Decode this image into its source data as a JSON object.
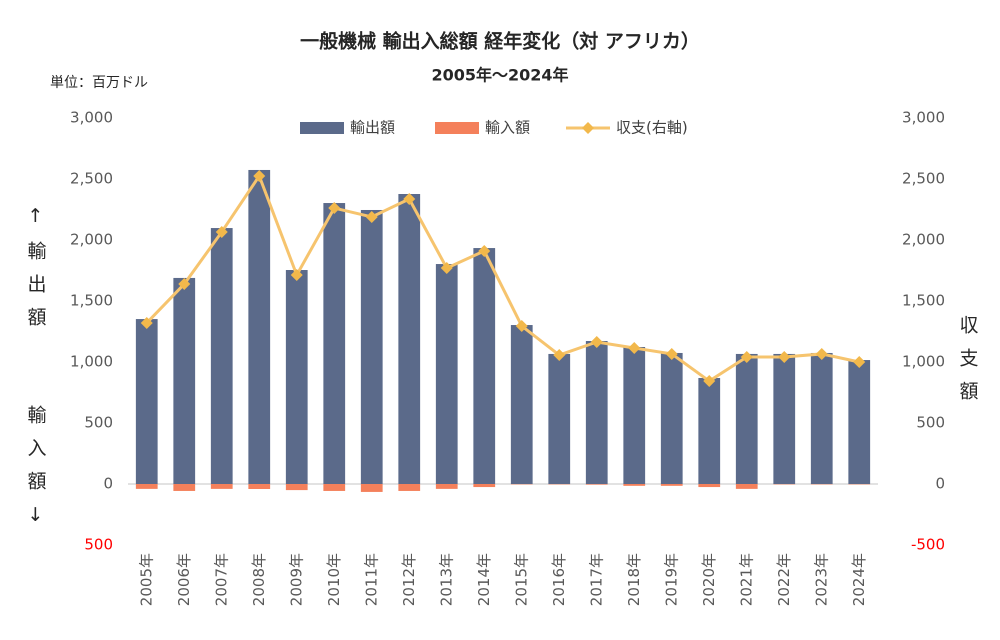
{
  "chart_data": {
    "type": "bar",
    "title": "一般機械 輸出入総額 経年変化（対 アフリカ）",
    "subtitle": "2005年～2024年",
    "unit": "単位：百万ドル",
    "ylabel": "↑輸出額",
    "ylabel2": "輸入額↓",
    "y2label": "収支額",
    "categories": [
      "2005年",
      "2006年",
      "2007年",
      "2008年",
      "2009年",
      "2010年",
      "2011年",
      "2012年",
      "2013年",
      "2014年",
      "2015年",
      "2016年",
      "2017年",
      "2018年",
      "2019年",
      "2020年",
      "2021年",
      "2022年",
      "2023年",
      "2024年"
    ],
    "series": [
      {
        "name": "輸出額",
        "type": "bar",
        "color": "#5b6a8a",
        "values": [
          1352,
          1689,
          2098,
          2574,
          1754,
          2303,
          2246,
          2377,
          1803,
          1934,
          1303,
          1066,
          1172,
          1123,
          1074,
          869,
          1066,
          1066,
          1074,
          1016
        ]
      },
      {
        "name": "輸入額",
        "type": "bar",
        "color": "#f4805b",
        "values": [
          -40,
          -57,
          -40,
          -41,
          -50,
          -57,
          -65,
          -57,
          -40,
          -25,
          -3,
          -3,
          -5,
          -15,
          -15,
          -25,
          -40,
          -3,
          -3,
          -3
        ]
      },
      {
        "name": "収支(右軸)",
        "type": "line",
        "axis": "y2",
        "color": "#f6c46e",
        "marker_color": "#f2b84b",
        "values": [
          1320,
          1639,
          2066,
          2525,
          1713,
          2262,
          2189,
          2336,
          1770,
          1910,
          1295,
          1057,
          1164,
          1115,
          1066,
          844,
          1041,
          1041,
          1066,
          1000
        ]
      }
    ],
    "ylim": [
      -500,
      3000
    ],
    "yticks": [
      {
        "value": -500,
        "label": "500"
      },
      0,
      500,
      {
        "value": 1000,
        "label": "1,000"
      },
      {
        "value": 1500,
        "label": "1,500"
      },
      {
        "value": 2000,
        "label": "2,000"
      },
      {
        "value": 2500,
        "label": "2,500"
      },
      {
        "value": 3000,
        "label": "3,000"
      }
    ],
    "y2lim": [
      -500,
      3000
    ],
    "y2ticks": [
      -500,
      0,
      500,
      {
        "value": 1000,
        "label": "1,000"
      },
      {
        "value": 1500,
        "label": "1,500"
      },
      {
        "value": 2000,
        "label": "2,000"
      },
      {
        "value": 2500,
        "label": "2,500"
      },
      {
        "value": 3000,
        "label": "3,000"
      }
    ],
    "negative_tick_color": "#ff0000",
    "zero_line_color": "#d9d9d9",
    "legend": "top",
    "grid": false
  }
}
